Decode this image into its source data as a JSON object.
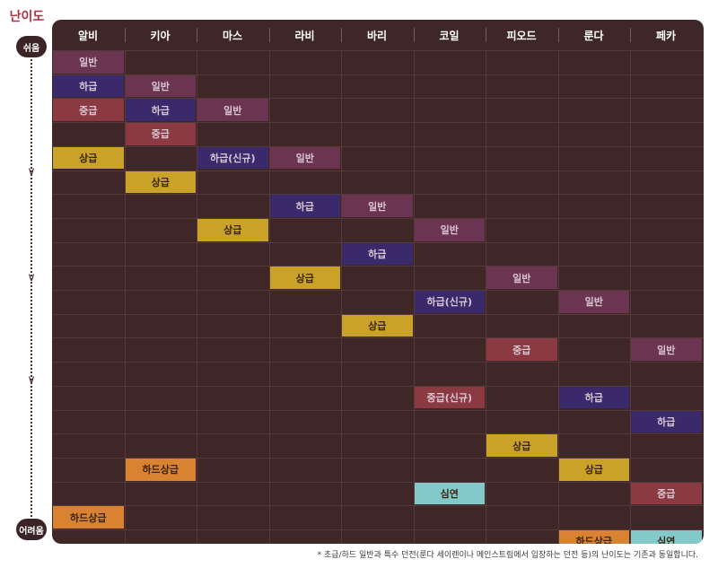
{
  "axis": {
    "title": "난이도",
    "easy_label": "쉬움",
    "hard_label": "어려움"
  },
  "columns": [
    "알비",
    "키아",
    "마스",
    "라비",
    "바리",
    "코일",
    "피오드",
    "룬다",
    "페카"
  ],
  "colors": {
    "board": "#3f2728",
    "일반": "#6b3450",
    "하급": "#3a2a6b",
    "중급": "#8a3a40",
    "상급": "#c9a227",
    "하드상급": "#d88232",
    "심연": "#83c9c9"
  },
  "cells": [
    {
      "col": 0,
      "row": 0,
      "label": "일반",
      "tier": "일반"
    },
    {
      "col": 0,
      "row": 1,
      "label": "하급",
      "tier": "하급"
    },
    {
      "col": 0,
      "row": 2,
      "label": "중급",
      "tier": "중급"
    },
    {
      "col": 0,
      "row": 4,
      "label": "상급",
      "tier": "상급"
    },
    {
      "col": 0,
      "row": 19,
      "label": "하드상급",
      "tier": "하드상급"
    },
    {
      "col": 1,
      "row": 1,
      "label": "일반",
      "tier": "일반"
    },
    {
      "col": 1,
      "row": 2,
      "label": "하급",
      "tier": "하급"
    },
    {
      "col": 1,
      "row": 3,
      "label": "중급",
      "tier": "중급"
    },
    {
      "col": 1,
      "row": 5,
      "label": "상급",
      "tier": "상급"
    },
    {
      "col": 1,
      "row": 17,
      "label": "하드상급",
      "tier": "하드상급"
    },
    {
      "col": 2,
      "row": 2,
      "label": "일반",
      "tier": "일반"
    },
    {
      "col": 2,
      "row": 4,
      "label": "하급(신규)",
      "tier": "하급"
    },
    {
      "col": 2,
      "row": 7,
      "label": "상급",
      "tier": "상급"
    },
    {
      "col": 3,
      "row": 4,
      "label": "일반",
      "tier": "일반"
    },
    {
      "col": 3,
      "row": 6,
      "label": "하급",
      "tier": "하급"
    },
    {
      "col": 3,
      "row": 9,
      "label": "상급",
      "tier": "상급"
    },
    {
      "col": 4,
      "row": 6,
      "label": "일반",
      "tier": "일반"
    },
    {
      "col": 4,
      "row": 8,
      "label": "하급",
      "tier": "하급"
    },
    {
      "col": 4,
      "row": 11,
      "label": "상급",
      "tier": "상급"
    },
    {
      "col": 5,
      "row": 7,
      "label": "일반",
      "tier": "일반"
    },
    {
      "col": 5,
      "row": 10,
      "label": "하급(신규)",
      "tier": "하급"
    },
    {
      "col": 5,
      "row": 14,
      "label": "중급(신규)",
      "tier": "중급"
    },
    {
      "col": 5,
      "row": 18,
      "label": "심연",
      "tier": "심연"
    },
    {
      "col": 6,
      "row": 9,
      "label": "일반",
      "tier": "일반"
    },
    {
      "col": 6,
      "row": 12,
      "label": "중급",
      "tier": "중급"
    },
    {
      "col": 6,
      "row": 16,
      "label": "상급",
      "tier": "상급"
    },
    {
      "col": 7,
      "row": 10,
      "label": "일반",
      "tier": "일반"
    },
    {
      "col": 7,
      "row": 14,
      "label": "하급",
      "tier": "하급"
    },
    {
      "col": 7,
      "row": 17,
      "label": "상급",
      "tier": "상급"
    },
    {
      "col": 7,
      "row": 20,
      "label": "하드상급",
      "tier": "하드상급"
    },
    {
      "col": 8,
      "row": 12,
      "label": "일반",
      "tier": "일반"
    },
    {
      "col": 8,
      "row": 15,
      "label": "하급",
      "tier": "하급"
    },
    {
      "col": 8,
      "row": 18,
      "label": "중급",
      "tier": "중급"
    },
    {
      "col": 8,
      "row": 20,
      "label": "심연",
      "tier": "심연"
    }
  ],
  "footnote": "* 초급/하드 일반과 특수 던전(룬다 세이렌이나 메인스트림에서 입장하는 던전 등)의 난이도는 기존과 동일합니다."
}
